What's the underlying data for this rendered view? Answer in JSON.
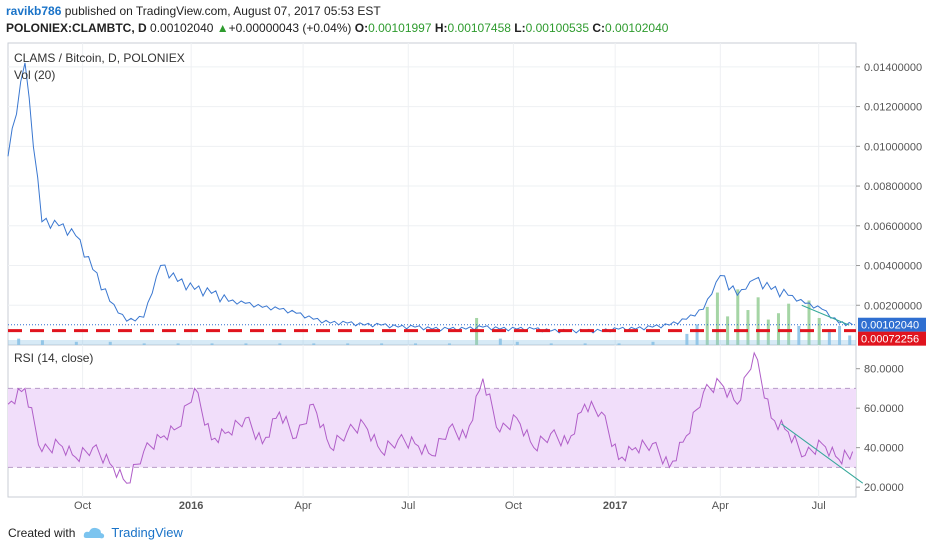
{
  "header": {
    "user": "ravikb786",
    "published_text": "published on TradingView.com, August 07, 2017 05:53 EST",
    "symbol": "POLONIEX:CLAMBTC, D",
    "price": "0.00102040",
    "change": "+0.00000043 (+0.04%)",
    "o_label": "O:",
    "o_value": "0.00101997",
    "h_label": "H:",
    "h_value": "0.00107458",
    "l_label": "L:",
    "l_value": "0.00100535",
    "c_label": "C:",
    "c_value": "0.00102040"
  },
  "footer": {
    "created_with": "Created with",
    "brand": "TradingView"
  },
  "colors": {
    "price_line": "#3a77d0",
    "volume": "#8cc2e6",
    "volume_spike": "#9bd09b",
    "red_dash": "#e0141e",
    "rsi_line": "#b05ec8",
    "rsi_band": "#f1defa",
    "trend_line": "#35a89a",
    "last_price_label": "#2f6fd1",
    "support_label": "#e0141e"
  },
  "chart_data": [
    {
      "type": "line",
      "title": "CLAMS / Bitcoin, D, POLONIEX",
      "subtitle": "Vol (20)",
      "x_ticks": [
        "Oct",
        "2016",
        "Apr",
        "Jul",
        "Oct",
        "2017",
        "Apr",
        "Jul"
      ],
      "y_ticks": [
        "0.01400000",
        "0.01200000",
        "0.01000000",
        "0.00800000",
        "0.00600000",
        "0.00400000",
        "0.00200000"
      ],
      "ylim": [
        0,
        0.0152
      ],
      "x_months": [
        0,
        0.5,
        1,
        1.5,
        2,
        2.5,
        3,
        3.5,
        4,
        4.5,
        5,
        5.5,
        6,
        6.5,
        7,
        7.5,
        8,
        8.5,
        9,
        9.5,
        10,
        10.5,
        11,
        11.5,
        12,
        12.5,
        13,
        13.5,
        14,
        14.5,
        15,
        15.5,
        16,
        16.5,
        17,
        17.5,
        18,
        18.5,
        19,
        19.5,
        20,
        20.5,
        21,
        21.5,
        22,
        22.5,
        23,
        23.5,
        24,
        24.5,
        24.9
      ],
      "y": [
        0.0095,
        0.0142,
        0.0062,
        0.006,
        0.0055,
        0.0038,
        0.0022,
        0.0012,
        0.0014,
        0.004,
        0.0032,
        0.0028,
        0.0026,
        0.0022,
        0.0021,
        0.0019,
        0.0018,
        0.0016,
        0.0013,
        0.0011,
        0.0011,
        0.001,
        0.001,
        0.0009,
        0.0009,
        0.0008,
        0.0008,
        0.0008,
        0.0009,
        0.0008,
        0.0008,
        0.0008,
        0.0007,
        0.0007,
        0.0007,
        0.0007,
        0.0008,
        0.0008,
        0.0009,
        0.001,
        0.0013,
        0.0018,
        0.0035,
        0.0025,
        0.0033,
        0.0028,
        0.0025,
        0.0021,
        0.0018,
        0.0011,
        0.00102
      ],
      "volume_x_months": [
        0.3,
        1,
        2,
        3,
        4,
        5,
        6,
        7,
        8,
        9,
        10,
        11,
        12,
        13,
        13.8,
        14.5,
        15,
        16,
        17,
        18,
        19,
        20,
        20.3,
        20.6,
        20.9,
        21.2,
        21.5,
        21.8,
        22.1,
        22.4,
        22.7,
        23,
        23.3,
        23.6,
        23.9,
        24.2,
        24.5,
        24.8
      ],
      "volume_y": [
        0.0004,
        0.0003,
        0.0002,
        0.0002,
        0.0001,
        0.0001,
        0.0001,
        0.0001,
        0.0001,
        0.0001,
        0.0001,
        0.0001,
        0.0001,
        0.0001,
        0.0017,
        0.0004,
        0.0002,
        0.0001,
        0.0001,
        0.0001,
        0.0002,
        0.0007,
        0.0013,
        0.0024,
        0.0033,
        0.0018,
        0.0035,
        0.0022,
        0.003,
        0.0016,
        0.002,
        0.0026,
        0.0012,
        0.0028,
        0.0017,
        0.001,
        0.0012,
        0.0006
      ],
      "support_level": 0.00072256,
      "last_price": 0.0010204,
      "last_price_label": "0.00102040",
      "support_label": "0.00072256",
      "trend_start": [
        23.4,
        0.002
      ],
      "trend_end": [
        24.8,
        0.001
      ]
    },
    {
      "type": "line",
      "title": "RSI (14, close)",
      "y_ticks": [
        "80.0000",
        "60.0000",
        "40.0000",
        "20.0000"
      ],
      "ylim": [
        15,
        92
      ],
      "band": [
        30,
        70
      ],
      "x_months": [
        0,
        0.5,
        1,
        1.5,
        2,
        2.5,
        3,
        3.5,
        4,
        4.5,
        5,
        5.5,
        6,
        6.5,
        7,
        7.5,
        8,
        8.5,
        9,
        9.5,
        10,
        10.5,
        11,
        11.5,
        12,
        12.5,
        13,
        13.5,
        14,
        14.5,
        15,
        15.5,
        16,
        16.5,
        17,
        17.5,
        18,
        18.5,
        19,
        19.5,
        20,
        20.5,
        21,
        21.5,
        22,
        22.5,
        23,
        23.5,
        24,
        24.5,
        24.9
      ],
      "y": [
        62,
        70,
        38,
        42,
        35,
        40,
        32,
        22,
        38,
        45,
        50,
        70,
        44,
        48,
        55,
        42,
        58,
        45,
        62,
        40,
        48,
        52,
        38,
        44,
        42,
        36,
        50,
        45,
        75,
        48,
        55,
        40,
        47,
        42,
        62,
        58,
        34,
        40,
        42,
        30,
        46,
        68,
        73,
        62,
        88,
        55,
        48,
        36,
        42,
        34,
        38
      ],
      "trend_start": [
        22.8,
        52
      ],
      "trend_end": [
        25.2,
        22
      ]
    }
  ]
}
